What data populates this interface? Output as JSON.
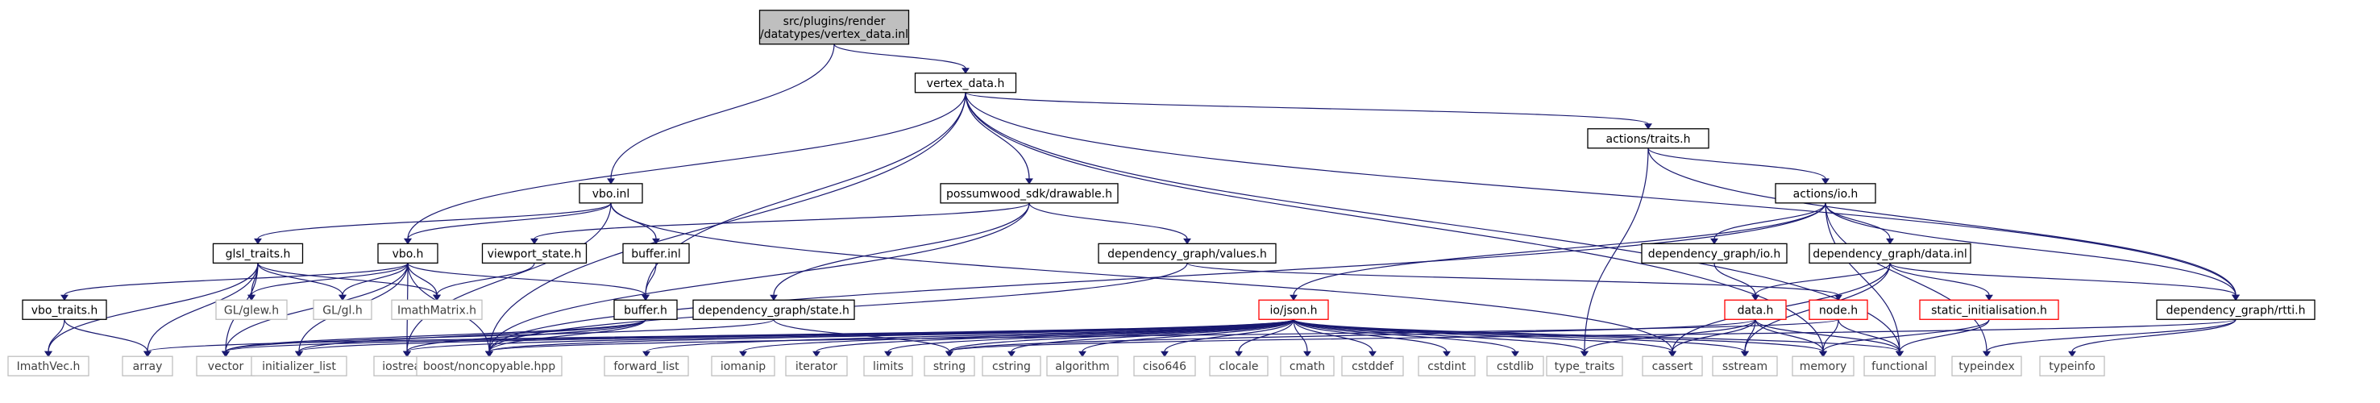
{
  "colors": {
    "edge": "#191970",
    "root_fill": "#bfbfbf",
    "box_border": "#000000",
    "link_border": "#ff0000",
    "external_border": "#bfbfbf",
    "external_text": "#404040",
    "text": "#000000"
  },
  "nodes": [
    {
      "id": "root",
      "lines": [
        "src/plugins/render",
        "/datatypes/vertex_data.inl"
      ],
      "kind": "root"
    },
    {
      "id": "vertex_data_h",
      "lines": [
        "vertex_data.h"
      ],
      "kind": "box"
    },
    {
      "id": "vbo_inl",
      "lines": [
        "vbo.inl"
      ],
      "kind": "box"
    },
    {
      "id": "actions_traits_h",
      "lines": [
        "actions/traits.h"
      ],
      "kind": "box"
    },
    {
      "id": "actions_io_h",
      "lines": [
        "actions/io.h"
      ],
      "kind": "box"
    },
    {
      "id": "drawable_h",
      "lines": [
        "possumwood_sdk/drawable.h"
      ],
      "kind": "box"
    },
    {
      "id": "glsl_traits_h",
      "lines": [
        "glsl_traits.h"
      ],
      "kind": "box"
    },
    {
      "id": "vbo_h",
      "lines": [
        "vbo.h"
      ],
      "kind": "box"
    },
    {
      "id": "viewport_state_h",
      "lines": [
        "viewport_state.h"
      ],
      "kind": "box"
    },
    {
      "id": "buffer_inl",
      "lines": [
        "buffer.inl"
      ],
      "kind": "box"
    },
    {
      "id": "dg_values_h",
      "lines": [
        "dependency_graph/values.h"
      ],
      "kind": "box"
    },
    {
      "id": "dg_io_h",
      "lines": [
        "dependency_graph/io.h"
      ],
      "kind": "box"
    },
    {
      "id": "dg_data_inl",
      "lines": [
        "dependency_graph/data.inl"
      ],
      "kind": "box"
    },
    {
      "id": "vbo_traits_h",
      "lines": [
        "vbo_traits.h"
      ],
      "kind": "box"
    },
    {
      "id": "glew_h",
      "lines": [
        "GL/glew.h"
      ],
      "kind": "external"
    },
    {
      "id": "gl_h",
      "lines": [
        "GL/gl.h"
      ],
      "kind": "external"
    },
    {
      "id": "imathmatrix_h",
      "lines": [
        "ImathMatrix.h"
      ],
      "kind": "external"
    },
    {
      "id": "buffer_h",
      "lines": [
        "buffer.h"
      ],
      "kind": "box"
    },
    {
      "id": "dg_state_h",
      "lines": [
        "dependency_graph/state.h"
      ],
      "kind": "box"
    },
    {
      "id": "io_json_h",
      "lines": [
        "io/json.h"
      ],
      "kind": "link"
    },
    {
      "id": "data_h",
      "lines": [
        "data.h"
      ],
      "kind": "link"
    },
    {
      "id": "node_h",
      "lines": [
        "node.h"
      ],
      "kind": "link"
    },
    {
      "id": "static_init_h",
      "lines": [
        "static_initialisation.h"
      ],
      "kind": "link"
    },
    {
      "id": "dg_rtti_h",
      "lines": [
        "dependency_graph/rtti.h"
      ],
      "kind": "box"
    },
    {
      "id": "imathvec_h",
      "lines": [
        "ImathVec.h"
      ],
      "kind": "external"
    },
    {
      "id": "array",
      "lines": [
        "array"
      ],
      "kind": "external"
    },
    {
      "id": "vector",
      "lines": [
        "vector"
      ],
      "kind": "external"
    },
    {
      "id": "initializer_list",
      "lines": [
        "initializer_list"
      ],
      "kind": "external"
    },
    {
      "id": "iostream",
      "lines": [
        "iostream"
      ],
      "kind": "external"
    },
    {
      "id": "noncopyable",
      "lines": [
        "boost/noncopyable.hpp"
      ],
      "kind": "external"
    },
    {
      "id": "forward_list",
      "lines": [
        "forward_list"
      ],
      "kind": "external"
    },
    {
      "id": "iomanip",
      "lines": [
        "iomanip"
      ],
      "kind": "external"
    },
    {
      "id": "iterator",
      "lines": [
        "iterator"
      ],
      "kind": "external"
    },
    {
      "id": "limits",
      "lines": [
        "limits"
      ],
      "kind": "external"
    },
    {
      "id": "string",
      "lines": [
        "string"
      ],
      "kind": "external"
    },
    {
      "id": "cstring",
      "lines": [
        "cstring"
      ],
      "kind": "external"
    },
    {
      "id": "algorithm",
      "lines": [
        "algorithm"
      ],
      "kind": "external"
    },
    {
      "id": "ciso646",
      "lines": [
        "ciso646"
      ],
      "kind": "external"
    },
    {
      "id": "clocale",
      "lines": [
        "clocale"
      ],
      "kind": "external"
    },
    {
      "id": "cmath",
      "lines": [
        "cmath"
      ],
      "kind": "external"
    },
    {
      "id": "cstddef",
      "lines": [
        "cstddef"
      ],
      "kind": "external"
    },
    {
      "id": "cstdint",
      "lines": [
        "cstdint"
      ],
      "kind": "external"
    },
    {
      "id": "cstdlib",
      "lines": [
        "cstdlib"
      ],
      "kind": "external"
    },
    {
      "id": "type_traits",
      "lines": [
        "type_traits"
      ],
      "kind": "external"
    },
    {
      "id": "cassert",
      "lines": [
        "cassert"
      ],
      "kind": "external"
    },
    {
      "id": "sstream",
      "lines": [
        "sstream"
      ],
      "kind": "external"
    },
    {
      "id": "memory",
      "lines": [
        "memory"
      ],
      "kind": "external"
    },
    {
      "id": "functional",
      "lines": [
        "functional"
      ],
      "kind": "external"
    },
    {
      "id": "typeindex",
      "lines": [
        "typeindex"
      ],
      "kind": "external"
    },
    {
      "id": "typeinfo",
      "lines": [
        "typeinfo"
      ],
      "kind": "external"
    }
  ],
  "edges": [
    [
      "root",
      "vertex_data_h"
    ],
    [
      "root",
      "vbo_inl"
    ],
    [
      "vertex_data_h",
      "vbo_h"
    ],
    [
      "vertex_data_h",
      "buffer_h"
    ],
    [
      "vertex_data_h",
      "drawable_h"
    ],
    [
      "vertex_data_h",
      "actions_traits_h"
    ],
    [
      "vertex_data_h",
      "noncopyable"
    ],
    [
      "vertex_data_h",
      "memory"
    ],
    [
      "vertex_data_h",
      "functional"
    ],
    [
      "vertex_data_h",
      "dg_rtti_h"
    ],
    [
      "vbo_inl",
      "glsl_traits_h"
    ],
    [
      "vbo_inl",
      "vbo_h"
    ],
    [
      "vbo_inl",
      "buffer_inl"
    ],
    [
      "vbo_inl",
      "iostream"
    ],
    [
      "vbo_inl",
      "cassert"
    ],
    [
      "actions_traits_h",
      "actions_io_h"
    ],
    [
      "actions_traits_h",
      "type_traits"
    ],
    [
      "actions_traits_h",
      "dg_rtti_h"
    ],
    [
      "actions_io_h",
      "dg_io_h"
    ],
    [
      "actions_io_h",
      "dg_data_inl"
    ],
    [
      "actions_io_h",
      "io_json_h"
    ],
    [
      "actions_io_h",
      "noncopyable"
    ],
    [
      "actions_io_h",
      "functional"
    ],
    [
      "actions_io_h",
      "typeindex"
    ],
    [
      "actions_io_h",
      "dg_rtti_h"
    ],
    [
      "drawable_h",
      "viewport_state_h"
    ],
    [
      "drawable_h",
      "dg_values_h"
    ],
    [
      "drawable_h",
      "dg_state_h"
    ],
    [
      "drawable_h",
      "noncopyable"
    ],
    [
      "glsl_traits_h",
      "imathvec_h"
    ],
    [
      "glsl_traits_h",
      "imathmatrix_h"
    ],
    [
      "glsl_traits_h",
      "glew_h"
    ],
    [
      "glsl_traits_h",
      "gl_h"
    ],
    [
      "glsl_traits_h",
      "array"
    ],
    [
      "glsl_traits_h",
      "vector"
    ],
    [
      "vbo_h",
      "vbo_traits_h"
    ],
    [
      "vbo_h",
      "glew_h"
    ],
    [
      "vbo_h",
      "gl_h"
    ],
    [
      "vbo_h",
      "buffer_h"
    ],
    [
      "vbo_h",
      "vector"
    ],
    [
      "vbo_h",
      "initializer_list"
    ],
    [
      "vbo_h",
      "iostream"
    ],
    [
      "vbo_h",
      "noncopyable"
    ],
    [
      "vbo_h",
      "imathmatrix_h"
    ],
    [
      "viewport_state_h",
      "imathmatrix_h"
    ],
    [
      "buffer_inl",
      "buffer_h"
    ],
    [
      "dg_values_h",
      "noncopyable"
    ],
    [
      "dg_values_h",
      "node_h"
    ],
    [
      "dg_io_h",
      "data_h"
    ],
    [
      "dg_data_inl",
      "data_h"
    ],
    [
      "dg_data_inl",
      "static_init_h"
    ],
    [
      "dg_data_inl",
      "dg_rtti_h"
    ],
    [
      "dg_data_inl",
      "cassert"
    ],
    [
      "dg_data_inl",
      "sstream"
    ],
    [
      "vbo_traits_h",
      "imathvec_h"
    ],
    [
      "vbo_traits_h",
      "array"
    ],
    [
      "buffer_h",
      "vector"
    ],
    [
      "buffer_h",
      "iostream"
    ],
    [
      "buffer_h",
      "noncopyable"
    ],
    [
      "buffer_h",
      "initializer_list"
    ],
    [
      "dg_state_h",
      "vector"
    ],
    [
      "dg_state_h",
      "string"
    ],
    [
      "io_json_h",
      "array"
    ],
    [
      "io_json_h",
      "vector"
    ],
    [
      "io_json_h",
      "initializer_list"
    ],
    [
      "io_json_h",
      "iostream"
    ],
    [
      "io_json_h",
      "noncopyable"
    ],
    [
      "io_json_h",
      "forward_list"
    ],
    [
      "io_json_h",
      "iomanip"
    ],
    [
      "io_json_h",
      "iterator"
    ],
    [
      "io_json_h",
      "limits"
    ],
    [
      "io_json_h",
      "string"
    ],
    [
      "io_json_h",
      "cstring"
    ],
    [
      "io_json_h",
      "algorithm"
    ],
    [
      "io_json_h",
      "ciso646"
    ],
    [
      "io_json_h",
      "clocale"
    ],
    [
      "io_json_h",
      "cmath"
    ],
    [
      "io_json_h",
      "cstddef"
    ],
    [
      "io_json_h",
      "cstdint"
    ],
    [
      "io_json_h",
      "cstdlib"
    ],
    [
      "io_json_h",
      "type_traits"
    ],
    [
      "io_json_h",
      "cassert"
    ],
    [
      "io_json_h",
      "sstream"
    ],
    [
      "io_json_h",
      "memory"
    ],
    [
      "io_json_h",
      "functional"
    ],
    [
      "data_h",
      "string"
    ],
    [
      "data_h",
      "type_traits"
    ],
    [
      "data_h",
      "cassert"
    ],
    [
      "data_h",
      "sstream"
    ],
    [
      "data_h",
      "memory"
    ],
    [
      "data_h",
      "functional"
    ],
    [
      "node_h",
      "noncopyable"
    ],
    [
      "node_h",
      "memory"
    ],
    [
      "node_h",
      "functional"
    ],
    [
      "static_init_h",
      "memory"
    ],
    [
      "static_init_h",
      "functional"
    ],
    [
      "dg_rtti_h",
      "string"
    ],
    [
      "dg_rtti_h",
      "typeindex"
    ],
    [
      "dg_rtti_h",
      "typeinfo"
    ]
  ]
}
